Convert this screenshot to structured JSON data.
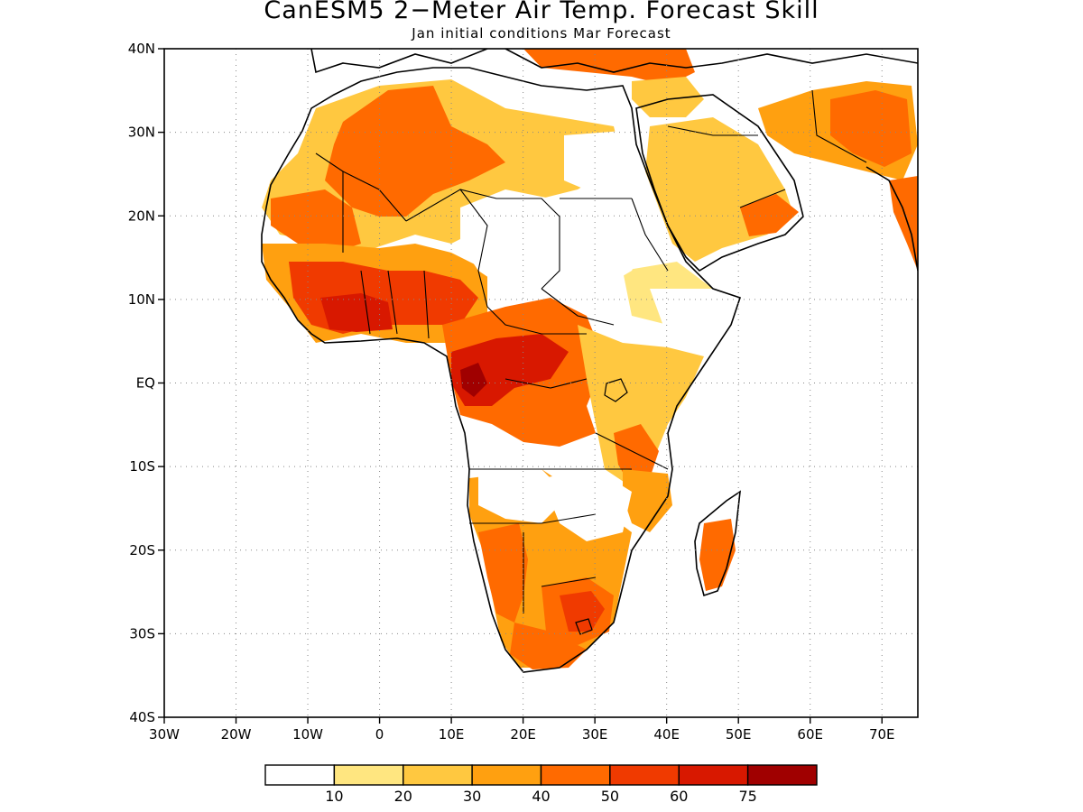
{
  "map": {
    "title": "CanESM5 2−Meter Air Temp. Forecast Skill",
    "subtitle": "Jan initial conditions  Mar Forecast",
    "lat_labels": [
      "40N",
      "30N",
      "20N",
      "10N",
      "EQ",
      "10S",
      "20S",
      "30S",
      "40S"
    ],
    "lon_labels": [
      "30W",
      "20W",
      "10W",
      "0",
      "10E",
      "20E",
      "30E",
      "40E",
      "50E",
      "60E",
      "70E"
    ],
    "extent": {
      "lon_min": -30,
      "lon_max": 75,
      "lat_min": -40,
      "lat_max": 40
    },
    "grid": true,
    "colorbar": {
      "colors": [
        "#ffffff",
        "#ffe680",
        "#ffc840",
        "#ffa010",
        "#ff6a00",
        "#f03a00",
        "#d81800",
        "#a00000"
      ],
      "labels": [
        "10",
        "20",
        "30",
        "40",
        "50",
        "60",
        "75"
      ]
    }
  }
}
